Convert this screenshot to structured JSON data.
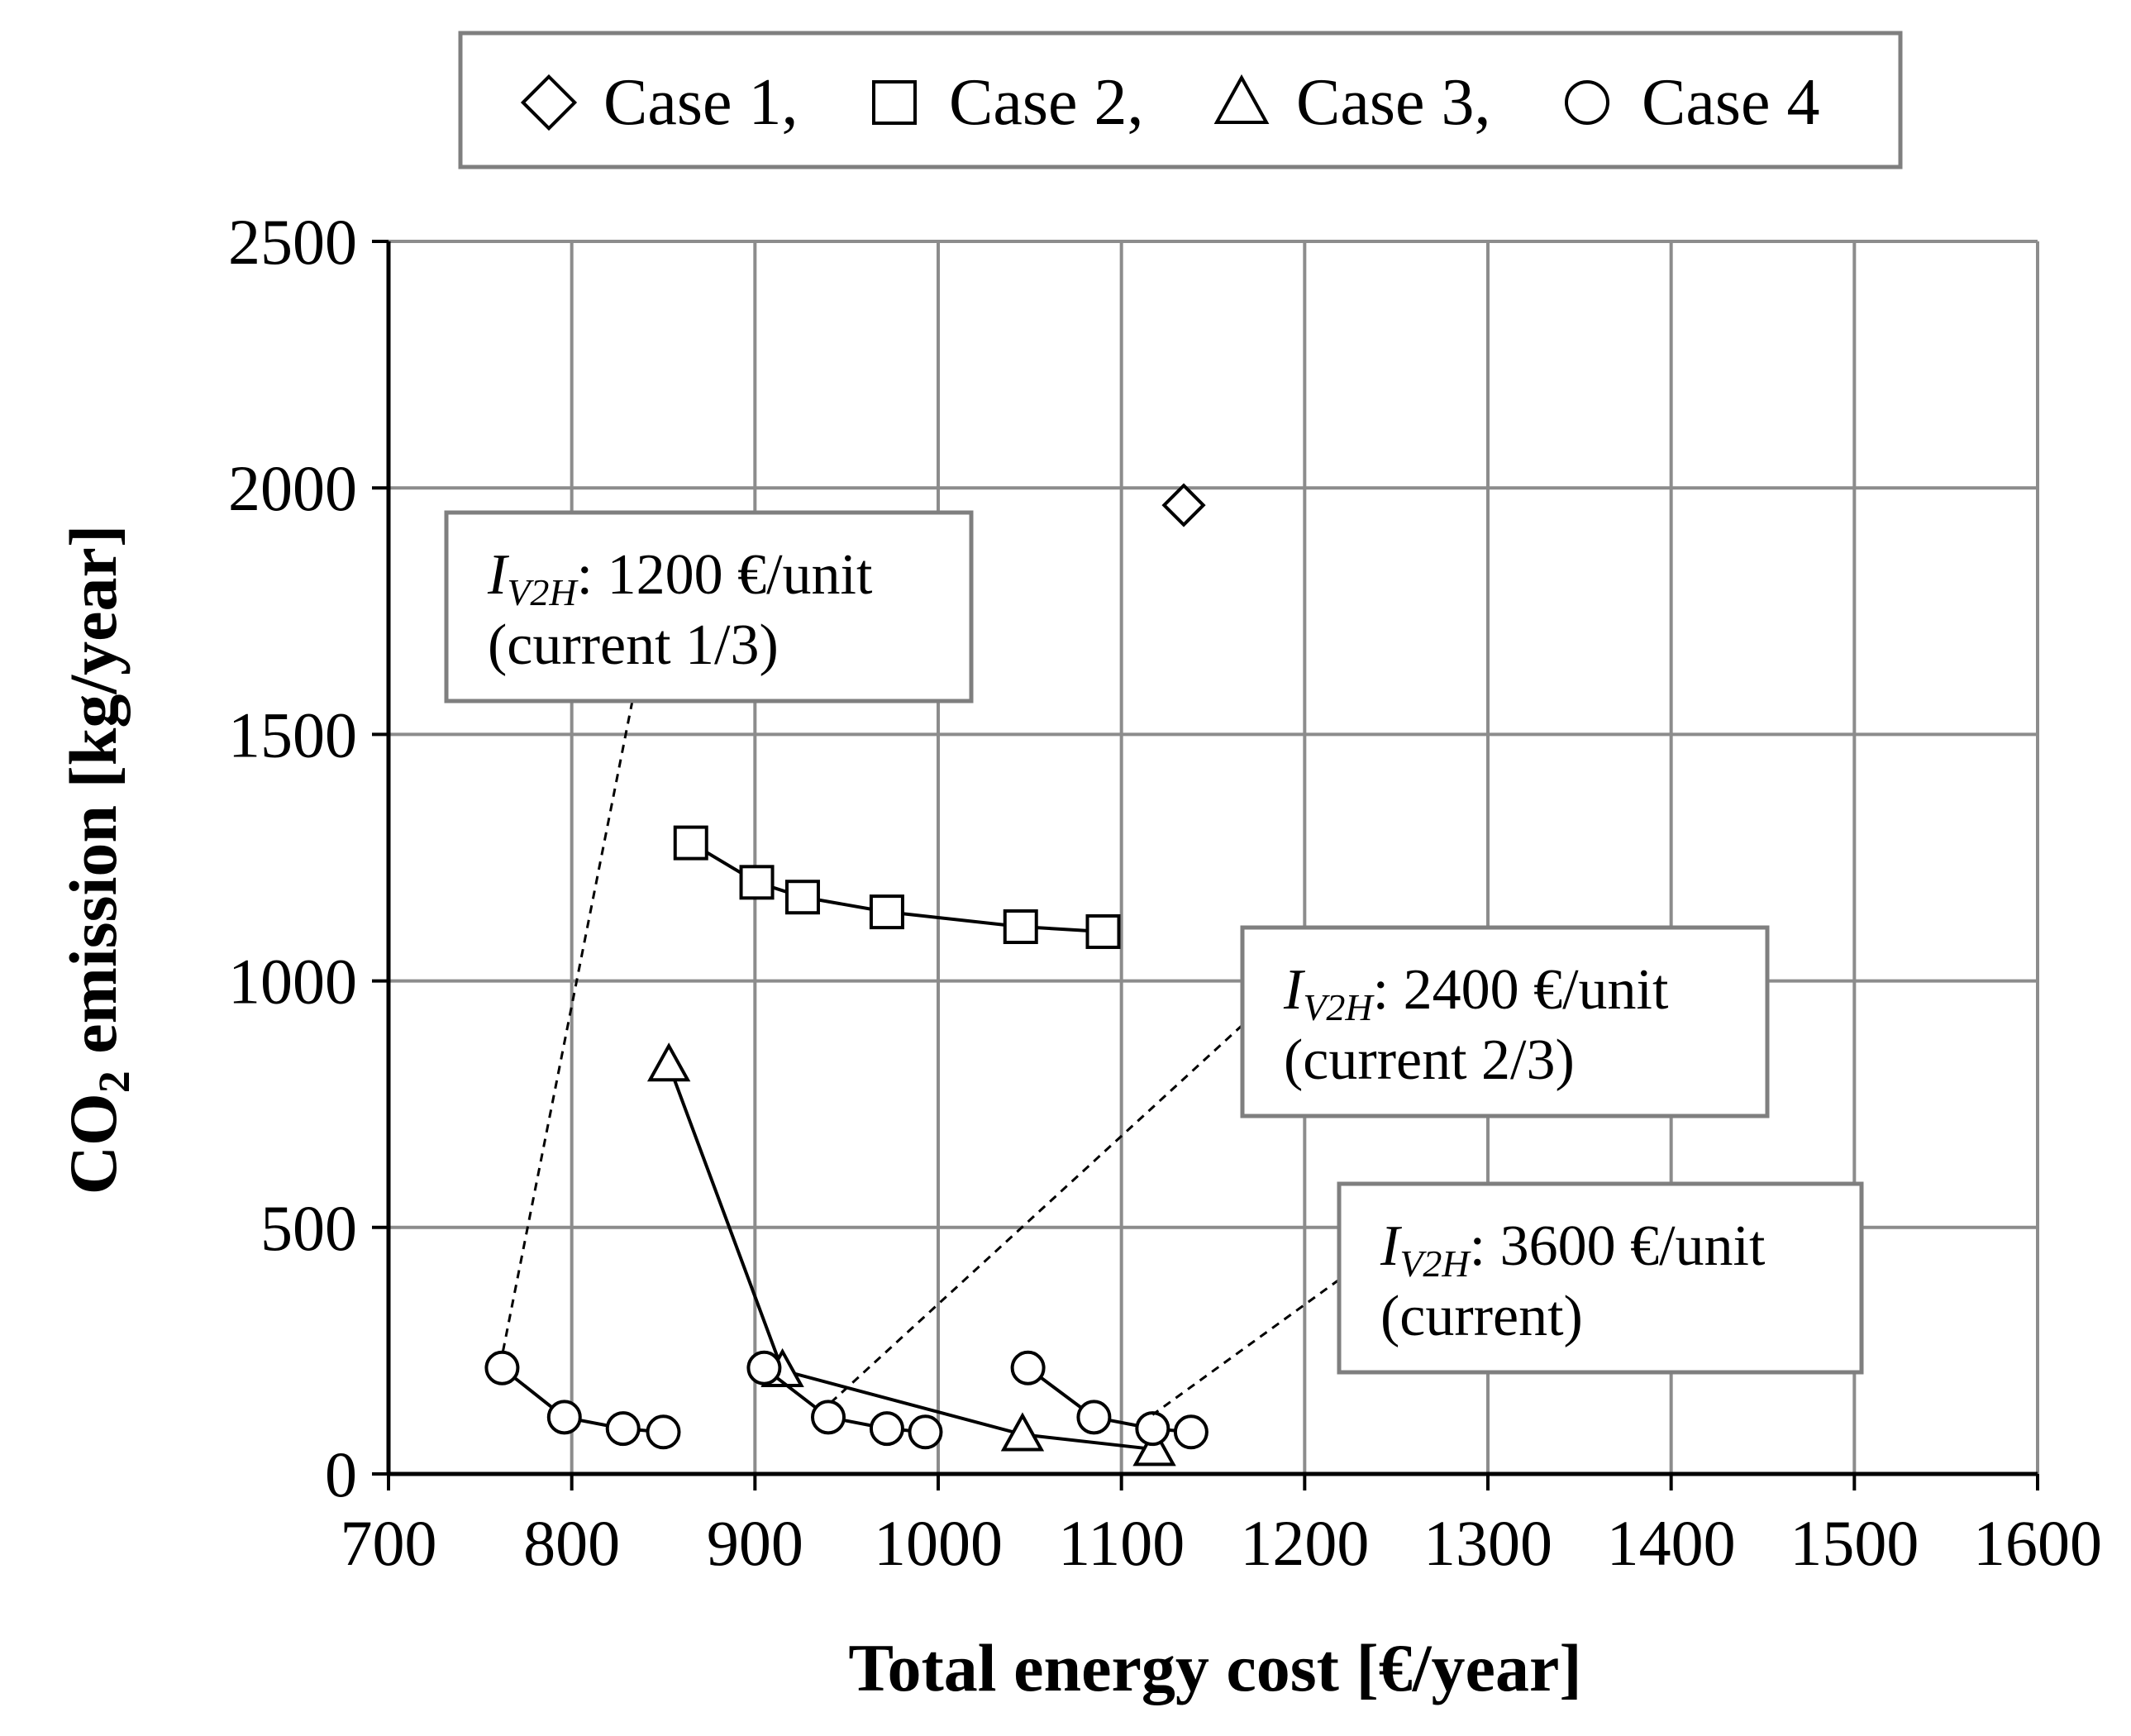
{
  "chart_data": {
    "type": "scatter",
    "xlabel": "Total energy cost [€/year]",
    "ylabel": {
      "prefix": "CO",
      "subscript": "2",
      "suffix": " emission [kg/year]"
    },
    "xlim": [
      700,
      1600
    ],
    "ylim": [
      0,
      2500
    ],
    "xticks": [
      "700",
      "800",
      "900",
      "1000",
      "1100",
      "1200",
      "1300",
      "1400",
      "1500",
      "1600"
    ],
    "yticks": [
      "0",
      "500",
      "1000",
      "1500",
      "2000",
      "2500"
    ],
    "grid": true,
    "legend_position": "top-center",
    "legend": [
      {
        "name": "Case 1,",
        "marker": "diamond"
      },
      {
        "name": "Case 2,",
        "marker": "square"
      },
      {
        "name": "Case 3,",
        "marker": "triangle"
      },
      {
        "name": "Case 4",
        "marker": "circle"
      }
    ],
    "series": [
      {
        "name": "Case 1",
        "marker": "diamond",
        "connected": false,
        "points": [
          [
            1134,
            1965
          ]
        ]
      },
      {
        "name": "Case 2",
        "marker": "square",
        "connected": true,
        "points": [
          [
            865,
            1280
          ],
          [
            901,
            1200
          ],
          [
            926,
            1170
          ],
          [
            972,
            1140
          ],
          [
            1045,
            1110
          ],
          [
            1090,
            1100
          ]
        ]
      },
      {
        "name": "Case 3",
        "marker": "triangle",
        "connected": true,
        "points": [
          [
            853,
            830
          ],
          [
            915,
            210
          ],
          [
            1046,
            80
          ],
          [
            1118,
            50
          ]
        ]
      },
      {
        "name": "Case 4",
        "marker": "circle",
        "connected": true,
        "groups": [
          [
            [
              762,
              215
            ],
            [
              796,
              115
            ],
            [
              828,
              92
            ],
            [
              850,
              85
            ]
          ],
          [
            [
              905,
              215
            ],
            [
              940,
              115
            ],
            [
              972,
              92
            ],
            [
              993,
              85
            ]
          ],
          [
            [
              1049,
              215
            ],
            [
              1085,
              115
            ],
            [
              1117,
              92
            ],
            [
              1138,
              85
            ]
          ]
        ]
      }
    ],
    "annotations": [
      {
        "line1_prefix": "I",
        "line1_sub": "V2H",
        "line1_value": ": 1200 €/unit",
        "line2": "(current 1/3)",
        "target": [
          762,
          240
        ]
      },
      {
        "line1_prefix": "I",
        "line1_sub": "V2H",
        "line1_value": ": 2400 €/unit",
        "line2": "(current 2/3)",
        "target": [
          940,
          140
        ]
      },
      {
        "line1_prefix": "I",
        "line1_sub": "V2H",
        "line1_value": ": 3600 €/unit",
        "line2": "(current)",
        "target": [
          1117,
          120
        ]
      }
    ],
    "colors": {
      "grid": "#8c8c8c",
      "axis": "#000000",
      "marker": "#000000",
      "box": "#7f7f7f"
    }
  }
}
